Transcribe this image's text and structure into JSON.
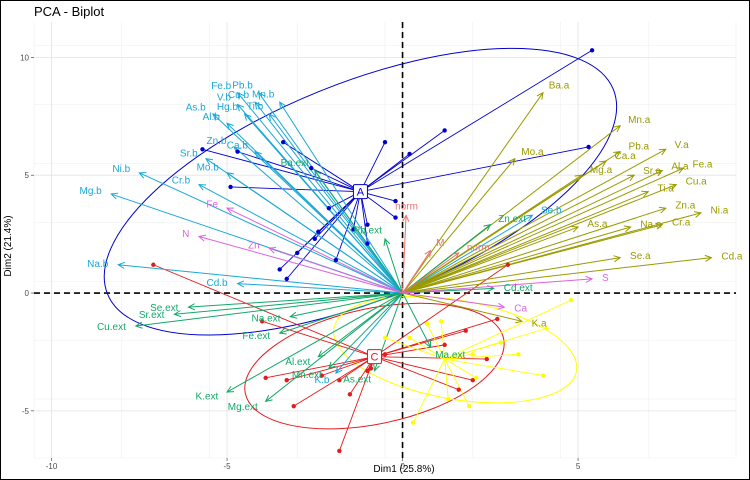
{
  "chart_data": {
    "type": "scatter",
    "subtype": "pca-biplot",
    "title": "PCA - Biplot",
    "xlabel": "Dim1 (25.8%)",
    "ylabel": "Dim2 (21.4%)",
    "xlim": [
      -10.5,
      9.5
    ],
    "ylim": [
      -7,
      11.5
    ],
    "xticks": [
      -10,
      -5,
      0,
      5
    ],
    "yticks": [
      -5,
      0,
      5,
      10
    ],
    "grid": true,
    "legend": "none",
    "colors": {
      "A": "#0000cc",
      "C": "#e41a1c",
      "yellow": "#ffff00",
      "b_vars": "#19a8d6",
      "a_vars": "#9a9a00",
      "ext_vars": "#14a86a",
      "S_vars": "#d966e0",
      "norm_vars": "#f07070"
    },
    "groups": [
      {
        "name": "A",
        "color": "#0000cc",
        "centroid": [
          -1.2,
          4.3
        ],
        "ellipse": {
          "cx": -1.2,
          "cy": 4.3,
          "rx": 9.3,
          "ry": 4.6,
          "angle": 22
        },
        "points": [
          [
            5.4,
            10.3
          ],
          [
            1.2,
            6.9
          ],
          [
            -0.5,
            6.4
          ],
          [
            0.2,
            5.9
          ],
          [
            -3.4,
            6.4
          ],
          [
            -2.6,
            5.3
          ],
          [
            -4.7,
            6.0
          ],
          [
            -5.7,
            6.1
          ],
          [
            -4.9,
            4.5
          ],
          [
            -2.1,
            3.6
          ],
          [
            -2.5,
            2.3
          ],
          [
            -3.5,
            1.0
          ],
          [
            -3.3,
            0.6
          ],
          [
            -1.0,
            2.9
          ],
          [
            -1.4,
            2.7
          ],
          [
            -0.2,
            3.2
          ],
          [
            -1.0,
            2.1
          ],
          [
            -2.4,
            2.6
          ],
          [
            -3.0,
            1.7
          ],
          [
            -1.9,
            1.4
          ],
          [
            5.3,
            6.2
          ],
          [
            -0.2,
            3.9
          ]
        ]
      },
      {
        "name": "C",
        "color": "#e41a1c",
        "centroid": [
          -0.8,
          -2.7
        ],
        "ellipse": {
          "cx": -0.8,
          "cy": -3.1,
          "rx": 4.5,
          "ry": 2.45,
          "angle": 12
        },
        "points": [
          [
            -7.1,
            1.2
          ],
          [
            -4.0,
            -1.2
          ],
          [
            -3.9,
            -3.6
          ],
          [
            -3.3,
            -3.7
          ],
          [
            -2.3,
            -3.5
          ],
          [
            -1.8,
            -3.7
          ],
          [
            -3.1,
            -4.8
          ],
          [
            -1.8,
            -6.7
          ],
          [
            -1.5,
            -4.3
          ],
          [
            -1.0,
            -3.3
          ],
          [
            -0.5,
            -2.6
          ],
          [
            1.8,
            -1.6
          ],
          [
            2.4,
            -2.8
          ],
          [
            2.0,
            -3.7
          ],
          [
            1.6,
            -4.1
          ],
          [
            3.0,
            1.2
          ],
          [
            1.2,
            -2.2
          ],
          [
            2.7,
            -1.1
          ],
          [
            -0.9,
            -3.2
          ]
        ]
      },
      {
        "name": "",
        "color": "#ffff00",
        "centroid": [
          1.2,
          -2.8
        ],
        "ellipse": {
          "cx": 1.5,
          "cy": -2.4,
          "rx": 4.2,
          "ry": 2.1,
          "angle": -10
        },
        "points": [
          [
            4.8,
            -0.3
          ],
          [
            4.1,
            -1.5
          ],
          [
            2.0,
            -2.6
          ],
          [
            2.1,
            -3.6
          ],
          [
            1.3,
            -4.5
          ],
          [
            0.3,
            -5.5
          ],
          [
            1.9,
            -4.8
          ],
          [
            0.2,
            -1.9
          ],
          [
            -0.5,
            -1.9
          ],
          [
            3.3,
            -2.6
          ],
          [
            1.1,
            -1.2
          ],
          [
            4.0,
            -3.5
          ],
          [
            2.8,
            -2.1
          ],
          [
            0.7,
            -1.3
          ]
        ]
      }
    ],
    "variables": [
      {
        "name": "Fe.b",
        "group": "b",
        "x": -4.7,
        "y": 8.5
      },
      {
        "name": "Pb.b",
        "group": "b",
        "x": -4.1,
        "y": 8.5
      },
      {
        "name": "V.b",
        "group": "b",
        "x": -4.7,
        "y": 8.0
      },
      {
        "name": "Cu.b",
        "group": "b",
        "x": -4.2,
        "y": 8.1
      },
      {
        "name": "Mn.b",
        "group": "b",
        "x": -3.5,
        "y": 8.1
      },
      {
        "name": "As.b",
        "group": "b",
        "x": -5.4,
        "y": 7.6
      },
      {
        "name": "Hg.b",
        "group": "b",
        "x": -4.5,
        "y": 7.6
      },
      {
        "name": "Ti.b",
        "group": "b",
        "x": -3.8,
        "y": 7.6
      },
      {
        "name": "Al.b",
        "group": "b",
        "x": -5.0,
        "y": 7.2
      },
      {
        "name": "Zn.b",
        "group": "b",
        "x": -4.8,
        "y": 6.2
      },
      {
        "name": "Ca.b",
        "group": "b",
        "x": -4.2,
        "y": 6.0
      },
      {
        "name": "Sr.b",
        "group": "b",
        "x": -5.6,
        "y": 5.7
      },
      {
        "name": "Mo.b",
        "group": "b",
        "x": -5.0,
        "y": 5.1
      },
      {
        "name": "Ni.b",
        "group": "b",
        "x": -7.5,
        "y": 5.1
      },
      {
        "name": "Cr.b",
        "group": "b",
        "x": -5.8,
        "y": 4.6
      },
      {
        "name": "Mg.b",
        "group": "b",
        "x": -8.3,
        "y": 4.2
      },
      {
        "name": "Na.b",
        "group": "b",
        "x": -8.1,
        "y": 1.2
      },
      {
        "name": "Cd.b",
        "group": "b",
        "x": -4.7,
        "y": 0.4
      },
      {
        "name": "Se.b",
        "group": "b",
        "x": 3.7,
        "y": 3.3
      },
      {
        "name": "K.b",
        "group": "b",
        "x": -1.9,
        "y": -3.4
      },
      {
        "name": "Ba.a",
        "group": "a",
        "x": 4.0,
        "y": 8.5
      },
      {
        "name": "Mn.a",
        "group": "a",
        "x": 6.2,
        "y": 7.1
      },
      {
        "name": "Pb.a",
        "group": "a",
        "x": 6.2,
        "y": 6.0
      },
      {
        "name": "V.a",
        "group": "a",
        "x": 7.5,
        "y": 6.1
      },
      {
        "name": "Ca.a",
        "group": "a",
        "x": 5.8,
        "y": 5.6
      },
      {
        "name": "Mo.a",
        "group": "a",
        "x": 3.2,
        "y": 5.7
      },
      {
        "name": "Fe.a",
        "group": "a",
        "x": 8.0,
        "y": 5.3
      },
      {
        "name": "Sr.a",
        "group": "a",
        "x": 6.6,
        "y": 5.0
      },
      {
        "name": "Mg.a",
        "group": "a",
        "x": 5.1,
        "y": 5.0
      },
      {
        "name": "Al.a",
        "group": "a",
        "x": 7.4,
        "y": 5.2
      },
      {
        "name": "Cu.a",
        "group": "a",
        "x": 7.8,
        "y": 4.6
      },
      {
        "name": "Ti.a",
        "group": "a",
        "x": 7.0,
        "y": 4.3
      },
      {
        "name": "Zn.a",
        "group": "a",
        "x": 7.5,
        "y": 3.6
      },
      {
        "name": "Ni.a",
        "group": "a",
        "x": 8.5,
        "y": 3.4
      },
      {
        "name": "As.a",
        "group": "a",
        "x": 5.0,
        "y": 2.8
      },
      {
        "name": "Na.a",
        "group": "a",
        "x": 6.5,
        "y": 2.8
      },
      {
        "name": "Cr.a",
        "group": "a",
        "x": 7.4,
        "y": 2.9
      },
      {
        "name": "Se.a",
        "group": "a",
        "x": 6.2,
        "y": 1.5
      },
      {
        "name": "Cd.a",
        "group": "a",
        "x": 8.8,
        "y": 1.5
      },
      {
        "name": "Ba.ext",
        "group": "ext",
        "x": -2.5,
        "y": 5.2
      },
      {
        "name": "Zn.ext",
        "group": "ext",
        "x": 2.5,
        "y": 2.9
      },
      {
        "name": "Pb.ext",
        "group": "ext",
        "x": -0.5,
        "y": 2.3
      },
      {
        "name": "Cd.ext",
        "group": "ext",
        "x": 2.6,
        "y": 0.2
      },
      {
        "name": "Se.ext",
        "group": "ext",
        "x": -6.1,
        "y": -0.6
      },
      {
        "name": "Sr.ext",
        "group": "ext",
        "x": -6.5,
        "y": -0.9
      },
      {
        "name": "Cu.ext",
        "group": "ext",
        "x": -7.6,
        "y": -1.4
      },
      {
        "name": "Na.ext",
        "group": "ext",
        "x": -3.2,
        "y": -1.0
      },
      {
        "name": "Fe.ext",
        "group": "ext",
        "x": -3.5,
        "y": -1.7
      },
      {
        "name": "Al.ext",
        "group": "ext",
        "x": -2.4,
        "y": -2.7
      },
      {
        "name": "Mn.ext",
        "group": "ext",
        "x": -2.1,
        "y": -3.2
      },
      {
        "name": "As.ext",
        "group": "ext",
        "x": -0.8,
        "y": -3.3
      },
      {
        "name": "K.ext",
        "group": "ext",
        "x": -5.0,
        "y": -4.2
      },
      {
        "name": "Mg.ext",
        "group": "ext",
        "x": -3.9,
        "y": -4.6
      },
      {
        "name": "Ma.ext",
        "group": "ext",
        "x": 0.8,
        "y": -2.3
      },
      {
        "name": "K.a",
        "group": "a",
        "x": 3.4,
        "y": -1.2
      },
      {
        "name": "Fe",
        "group": "S",
        "x": -5.0,
        "y": 3.6
      },
      {
        "name": "N",
        "group": "S",
        "x": -5.8,
        "y": 2.4
      },
      {
        "name": "Zn",
        "group": "S",
        "x": -3.8,
        "y": 1.9
      },
      {
        "name": "S",
        "group": "S",
        "x": 5.4,
        "y": 0.6
      },
      {
        "name": "Ca",
        "group": "S",
        "x": 2.9,
        "y": -0.6
      },
      {
        "name": "norm",
        "group": "norm",
        "x": 0.1,
        "y": 3.3
      },
      {
        "name": "norm",
        "group": "norm",
        "x": 1.6,
        "y": 1.7
      },
      {
        "name": "M",
        "group": "norm",
        "x": 0.8,
        "y": 1.8
      }
    ]
  }
}
